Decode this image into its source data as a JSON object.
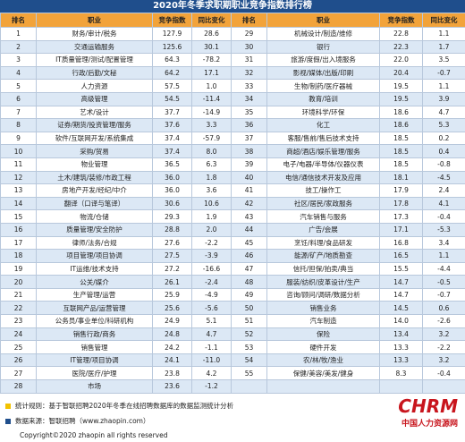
{
  "title": "2020年冬季求职期职业竞争指数排行榜",
  "table": {
    "header": [
      "排名",
      "职业",
      "竞争指数",
      "同比变化",
      "排名",
      "职业",
      "竞争指数",
      "同比变化"
    ],
    "rows": [
      [
        "1",
        "财务/审计/税务",
        "127.9",
        "28.6",
        "29",
        "机械设计/制造/维修",
        "22.8",
        "1.1"
      ],
      [
        "2",
        "交通运输服务",
        "125.6",
        "30.1",
        "30",
        "银行",
        "22.3",
        "1.7"
      ],
      [
        "3",
        "IT质量管理/测试/配置管理",
        "64.3",
        "-78.2",
        "31",
        "旅游/度假/出入境服务",
        "22.0",
        "3.5"
      ],
      [
        "4",
        "行政/后勤/文秘",
        "64.2",
        "17.1",
        "32",
        "影视/媒体/出版/印刷",
        "20.4",
        "-0.7"
      ],
      [
        "5",
        "人力资源",
        "57.5",
        "1.0",
        "33",
        "生物/制药/医疗器械",
        "19.5",
        "1.1"
      ],
      [
        "6",
        "高级管理",
        "54.5",
        "-11.4",
        "34",
        "教育/培训",
        "19.5",
        "3.9"
      ],
      [
        "7",
        "艺术/设计",
        "37.7",
        "-14.9",
        "35",
        "环境科学/环保",
        "18.6",
        "4.7"
      ],
      [
        "8",
        "证券/期货/投资管理/服务",
        "37.6",
        "3.3",
        "36",
        "化工",
        "18.6",
        "5.3"
      ],
      [
        "9",
        "软件/互联网开发/系统集成",
        "37.4",
        "-57.9",
        "37",
        "客服/售前/售后技术支持",
        "18.5",
        "0.2"
      ],
      [
        "10",
        "采购/贸易",
        "37.4",
        "8.0",
        "38",
        "商超/酒店/娱乐管理/服务",
        "18.5",
        "0.4"
      ],
      [
        "11",
        "物业管理",
        "36.5",
        "6.3",
        "39",
        "电子/电器/半导体/仪器仪表",
        "18.5",
        "-0.8"
      ],
      [
        "12",
        "土木/建筑/装修/市政工程",
        "36.0",
        "1.8",
        "40",
        "电信/通信技术开发及应用",
        "18.1",
        "-4.5"
      ],
      [
        "13",
        "房地产开发/经纪/中介",
        "36.0",
        "3.6",
        "41",
        "技工/操作工",
        "17.9",
        "2.4"
      ],
      [
        "14",
        "翻译（口译与笔译）",
        "30.6",
        "10.6",
        "42",
        "社区/居民/家政服务",
        "17.8",
        "4.1"
      ],
      [
        "15",
        "物流/仓储",
        "29.3",
        "1.9",
        "43",
        "汽车销售与服务",
        "17.3",
        "-0.4"
      ],
      [
        "16",
        "质量管理/安全防护",
        "28.8",
        "2.0",
        "44",
        "广告/会展",
        "17.1",
        "-5.3"
      ],
      [
        "17",
        "律师/法务/合规",
        "27.6",
        "-2.2",
        "45",
        "烹饪/料理/食品研发",
        "16.8",
        "3.4"
      ],
      [
        "18",
        "项目管理/项目协调",
        "27.5",
        "-3.9",
        "46",
        "能源/矿产/地质勘查",
        "16.5",
        "1.1"
      ],
      [
        "19",
        "IT运维/技术支持",
        "27.2",
        "-16.6",
        "47",
        "信托/担保/拍卖/典当",
        "15.5",
        "-4.4"
      ],
      [
        "20",
        "公关/媒介",
        "26.1",
        "-2.4",
        "48",
        "服装/纺织/皮革设计/生产",
        "14.7",
        "-0.5"
      ],
      [
        "21",
        "生产管理/运营",
        "25.9",
        "-4.9",
        "49",
        "咨询/顾问/调研/数据分析",
        "14.7",
        "-0.7"
      ],
      [
        "22",
        "互联网产品/运营管理",
        "25.6",
        "-5.6",
        "50",
        "销售业务",
        "14.5",
        "0.6"
      ],
      [
        "23",
        "公务员/事业单位/科研机构",
        "24.9",
        "5.1",
        "51",
        "汽车制造",
        "14.0",
        "-2.6"
      ],
      [
        "24",
        "销售行政/商务",
        "24.8",
        "4.7",
        "52",
        "保险",
        "13.4",
        "3.2"
      ],
      [
        "25",
        "销售管理",
        "24.2",
        "-1.1",
        "53",
        "硬件开发",
        "13.3",
        "-2.2"
      ],
      [
        "26",
        "IT管理/项目协调",
        "24.1",
        "-11.0",
        "54",
        "农/林/牧/渔业",
        "13.3",
        "3.2"
      ],
      [
        "27",
        "医院/医疗/护理",
        "23.8",
        "4.2",
        "55",
        "保健/美容/美发/健身",
        "8.3",
        "-0.4"
      ],
      [
        "28",
        "市场",
        "23.6",
        "-1.2"
      ]
    ]
  },
  "footer": {
    "rule": "统计规则：基于智联招聘2020年冬季在线招聘数据库的数据监测统计分析",
    "source": "数据来源：智联招聘（www.zhaopin.com）",
    "copyright": "Copyright©2020 zhaopin all rights reserved"
  },
  "logo": {
    "brand": "CHRM",
    "name": "中国人力资源网"
  }
}
